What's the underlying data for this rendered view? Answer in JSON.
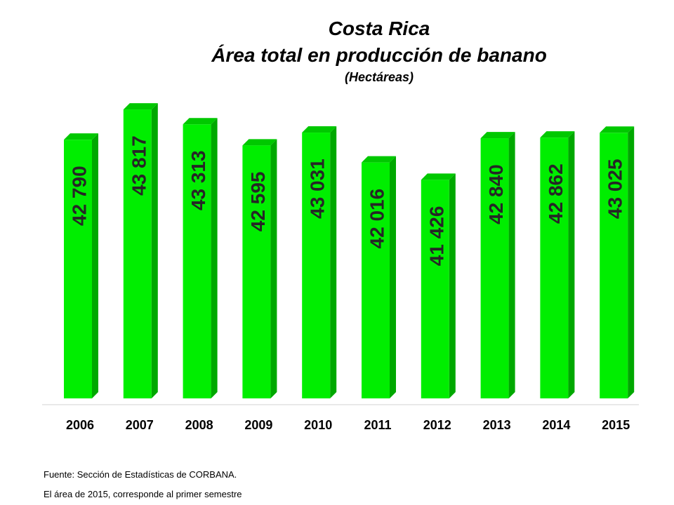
{
  "chart_data": {
    "type": "bar",
    "title": "Costa Rica",
    "subtitle": "Área total en producción de banano",
    "unit_label": "(Hectáreas)",
    "categories": [
      "2006",
      "2007",
      "2008",
      "2009",
      "2010",
      "2011",
      "2012",
      "2013",
      "2014",
      "2015"
    ],
    "values": [
      42790,
      43817,
      43313,
      42595,
      43031,
      42016,
      41426,
      42840,
      42862,
      43025
    ],
    "value_labels": [
      "42 790",
      "43 817",
      "43 313",
      "42 595",
      "43 031",
      "42 016",
      "41 426",
      "42 840",
      "42 862",
      "43 025"
    ],
    "ylim": [
      34000,
      44200
    ],
    "grid": false,
    "legend": "none",
    "bar_color": "#00EE00",
    "bar_side_color": "#00A800",
    "bar_top_color": "#00C800"
  },
  "footnotes": {
    "source": "Fuente: Sección de Estadísticas de CORBANA.",
    "note": "El área de 2015, corresponde al primer semestre"
  }
}
